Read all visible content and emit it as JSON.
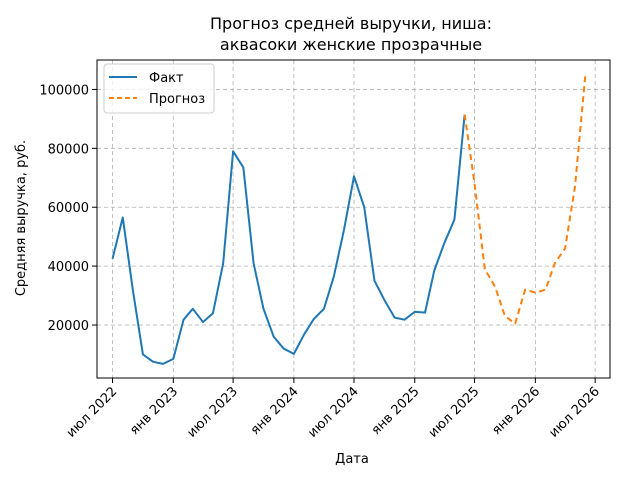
{
  "chart_data": {
    "type": "line",
    "title": "Прогноз средней выручки, ниша:",
    "subtitle": "аквасоки женские прозрачные",
    "xlabel": "Дата",
    "ylabel": "Средняя выручка, руб.",
    "ylim": [
      2000,
      110000
    ],
    "yticks": [
      20000,
      40000,
      60000,
      80000,
      100000
    ],
    "xticks": [
      {
        "date": "2022-07-01",
        "label": "июл 2022"
      },
      {
        "date": "2023-01-01",
        "label": "янв 2023"
      },
      {
        "date": "2023-07-01",
        "label": "июл 2023"
      },
      {
        "date": "2024-01-01",
        "label": "янв 2024"
      },
      {
        "date": "2024-07-01",
        "label": "июл 2024"
      },
      {
        "date": "2025-01-01",
        "label": "янв 2025"
      },
      {
        "date": "2025-07-01",
        "label": "июл 2025"
      },
      {
        "date": "2026-01-01",
        "label": "янв 2026"
      },
      {
        "date": "2026-07-01",
        "label": "июл 2026"
      }
    ],
    "xlim": [
      "2022-05-15",
      "2026-08-15"
    ],
    "grid": true,
    "legend_position": "top-left",
    "series": [
      {
        "name": "Факт",
        "color": "#1f77b4",
        "style": "solid",
        "points": [
          {
            "x": "2022-07-01",
            "y": 42500
          },
          {
            "x": "2022-08-01",
            "y": 56500
          },
          {
            "x": "2022-09-01",
            "y": 31500
          },
          {
            "x": "2022-10-01",
            "y": 10000
          },
          {
            "x": "2022-11-01",
            "y": 7500
          },
          {
            "x": "2022-12-01",
            "y": 6800
          },
          {
            "x": "2023-01-01",
            "y": 8500
          },
          {
            "x": "2023-02-01",
            "y": 21800
          },
          {
            "x": "2023-03-01",
            "y": 25500
          },
          {
            "x": "2023-04-01",
            "y": 21000
          },
          {
            "x": "2023-05-01",
            "y": 24000
          },
          {
            "x": "2023-06-01",
            "y": 41000
          },
          {
            "x": "2023-07-01",
            "y": 79000
          },
          {
            "x": "2023-08-01",
            "y": 73500
          },
          {
            "x": "2023-09-01",
            "y": 41000
          },
          {
            "x": "2023-10-01",
            "y": 25500
          },
          {
            "x": "2023-11-01",
            "y": 16000
          },
          {
            "x": "2023-12-01",
            "y": 12000
          },
          {
            "x": "2024-01-01",
            "y": 10200
          },
          {
            "x": "2024-02-01",
            "y": 16800
          },
          {
            "x": "2024-03-01",
            "y": 22000
          },
          {
            "x": "2024-04-01",
            "y": 25500
          },
          {
            "x": "2024-05-01",
            "y": 36500
          },
          {
            "x": "2024-06-01",
            "y": 52500
          },
          {
            "x": "2024-07-01",
            "y": 70500
          },
          {
            "x": "2024-08-01",
            "y": 60000
          },
          {
            "x": "2024-09-01",
            "y": 35000
          },
          {
            "x": "2024-10-01",
            "y": 28500
          },
          {
            "x": "2024-11-01",
            "y": 22500
          },
          {
            "x": "2024-12-01",
            "y": 21800
          },
          {
            "x": "2025-01-01",
            "y": 24500
          },
          {
            "x": "2025-02-01",
            "y": 24200
          },
          {
            "x": "2025-03-01",
            "y": 38500
          },
          {
            "x": "2025-04-01",
            "y": 48000
          },
          {
            "x": "2025-05-01",
            "y": 55800
          },
          {
            "x": "2025-06-01",
            "y": 91500
          }
        ]
      },
      {
        "name": "Прогноз",
        "color": "#ff7f0e",
        "style": "dashed",
        "points": [
          {
            "x": "2025-06-01",
            "y": 91500
          },
          {
            "x": "2025-07-01",
            "y": 68000
          },
          {
            "x": "2025-08-01",
            "y": 39000
          },
          {
            "x": "2025-09-01",
            "y": 33000
          },
          {
            "x": "2025-10-01",
            "y": 23000
          },
          {
            "x": "2025-11-01",
            "y": 20500
          },
          {
            "x": "2025-12-01",
            "y": 32000
          },
          {
            "x": "2026-01-01",
            "y": 31000
          },
          {
            "x": "2026-02-01",
            "y": 32000
          },
          {
            "x": "2026-03-01",
            "y": 41000
          },
          {
            "x": "2026-04-01",
            "y": 46000
          },
          {
            "x": "2026-05-01",
            "y": 67000
          },
          {
            "x": "2026-06-01",
            "y": 104500
          }
        ]
      }
    ]
  }
}
